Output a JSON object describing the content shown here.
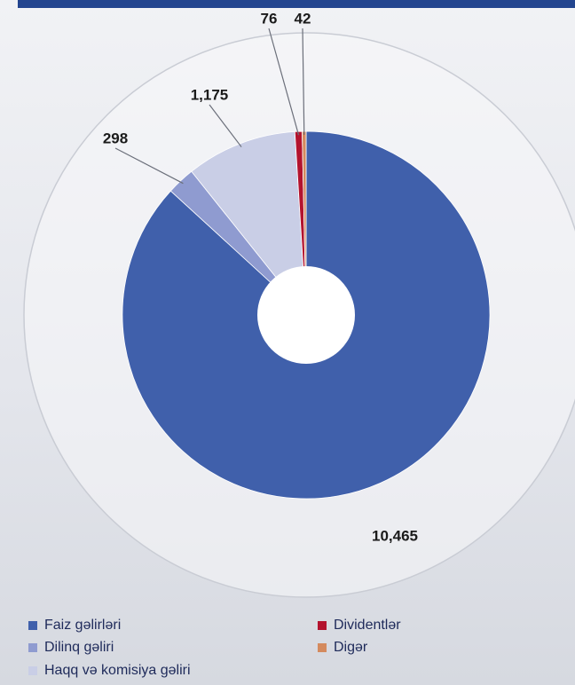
{
  "chart_data": {
    "type": "donut",
    "categories": [
      "Faiz gəlirləri",
      "Dilinq gəliri",
      "Haqq və komisiya gəliri",
      "Dividentlər",
      "Digər"
    ],
    "values": [
      10465,
      298,
      1175,
      76,
      42
    ],
    "value_labels": [
      "10,465",
      "298",
      "1,175",
      "76",
      "42"
    ],
    "colors": [
      "#4060ab",
      "#8f9bd0",
      "#c9cee6",
      "#b3132e",
      "#d48a5e"
    ],
    "legend": "bottom"
  }
}
